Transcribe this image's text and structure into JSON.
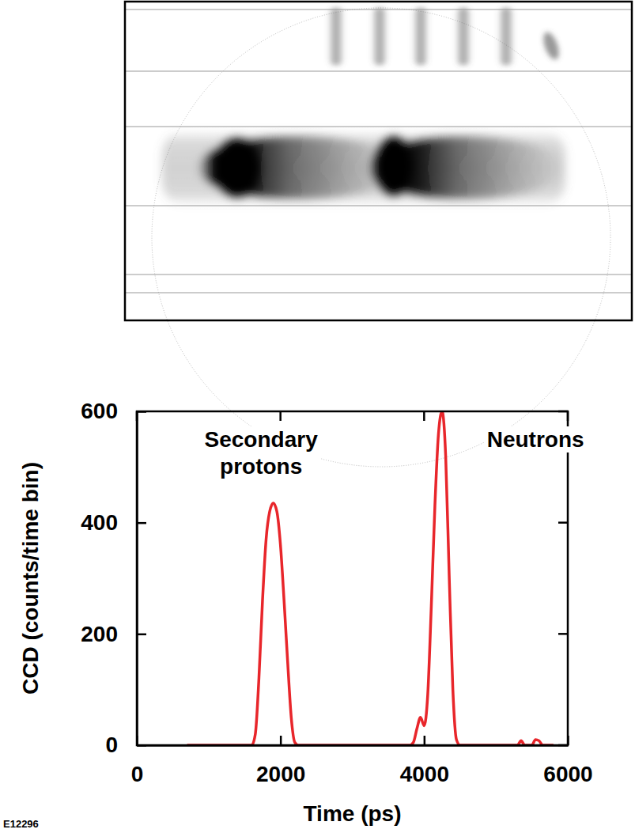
{
  "chart_data": {
    "type": "line",
    "figure_id": "E12296",
    "x_label": "Time (ps)",
    "y_label": "CCD (counts/time bin)",
    "xlim": [
      0,
      6000
    ],
    "ylim": [
      0,
      600
    ],
    "xticks": [
      0,
      2000,
      4000,
      6000
    ],
    "yticks": [
      0,
      200,
      400,
      600
    ],
    "grid": false,
    "x": [
      700,
      1500,
      1600,
      1650,
      1700,
      1750,
      1800,
      1850,
      1900,
      1950,
      2000,
      2050,
      2100,
      2150,
      2200,
      2250,
      3800,
      3850,
      3900,
      3950,
      4000,
      4050,
      4100,
      4150,
      4200,
      4250,
      4300,
      4350,
      4400,
      4450,
      4500,
      5300,
      5350,
      5400,
      5500,
      5550,
      5600,
      5650,
      5800
    ],
    "series": [
      {
        "name": "CCD",
        "color": "#e8262b",
        "line_style": "solid",
        "values": [
          0,
          0,
          0,
          20,
          120,
          260,
          370,
          420,
          435,
          420,
          360,
          260,
          150,
          50,
          5,
          0,
          0,
          5,
          30,
          50,
          35,
          90,
          250,
          430,
          560,
          600,
          520,
          300,
          100,
          10,
          0,
          0,
          8,
          0,
          0,
          10,
          8,
          0,
          0
        ]
      }
    ],
    "annotations": [
      {
        "lines": [
          "Secondary",
          "protons"
        ],
        "x": 1730,
        "y": 536
      },
      {
        "lines": [
          "Neutrons"
        ],
        "x": 5550,
        "y": 536
      }
    ]
  }
}
